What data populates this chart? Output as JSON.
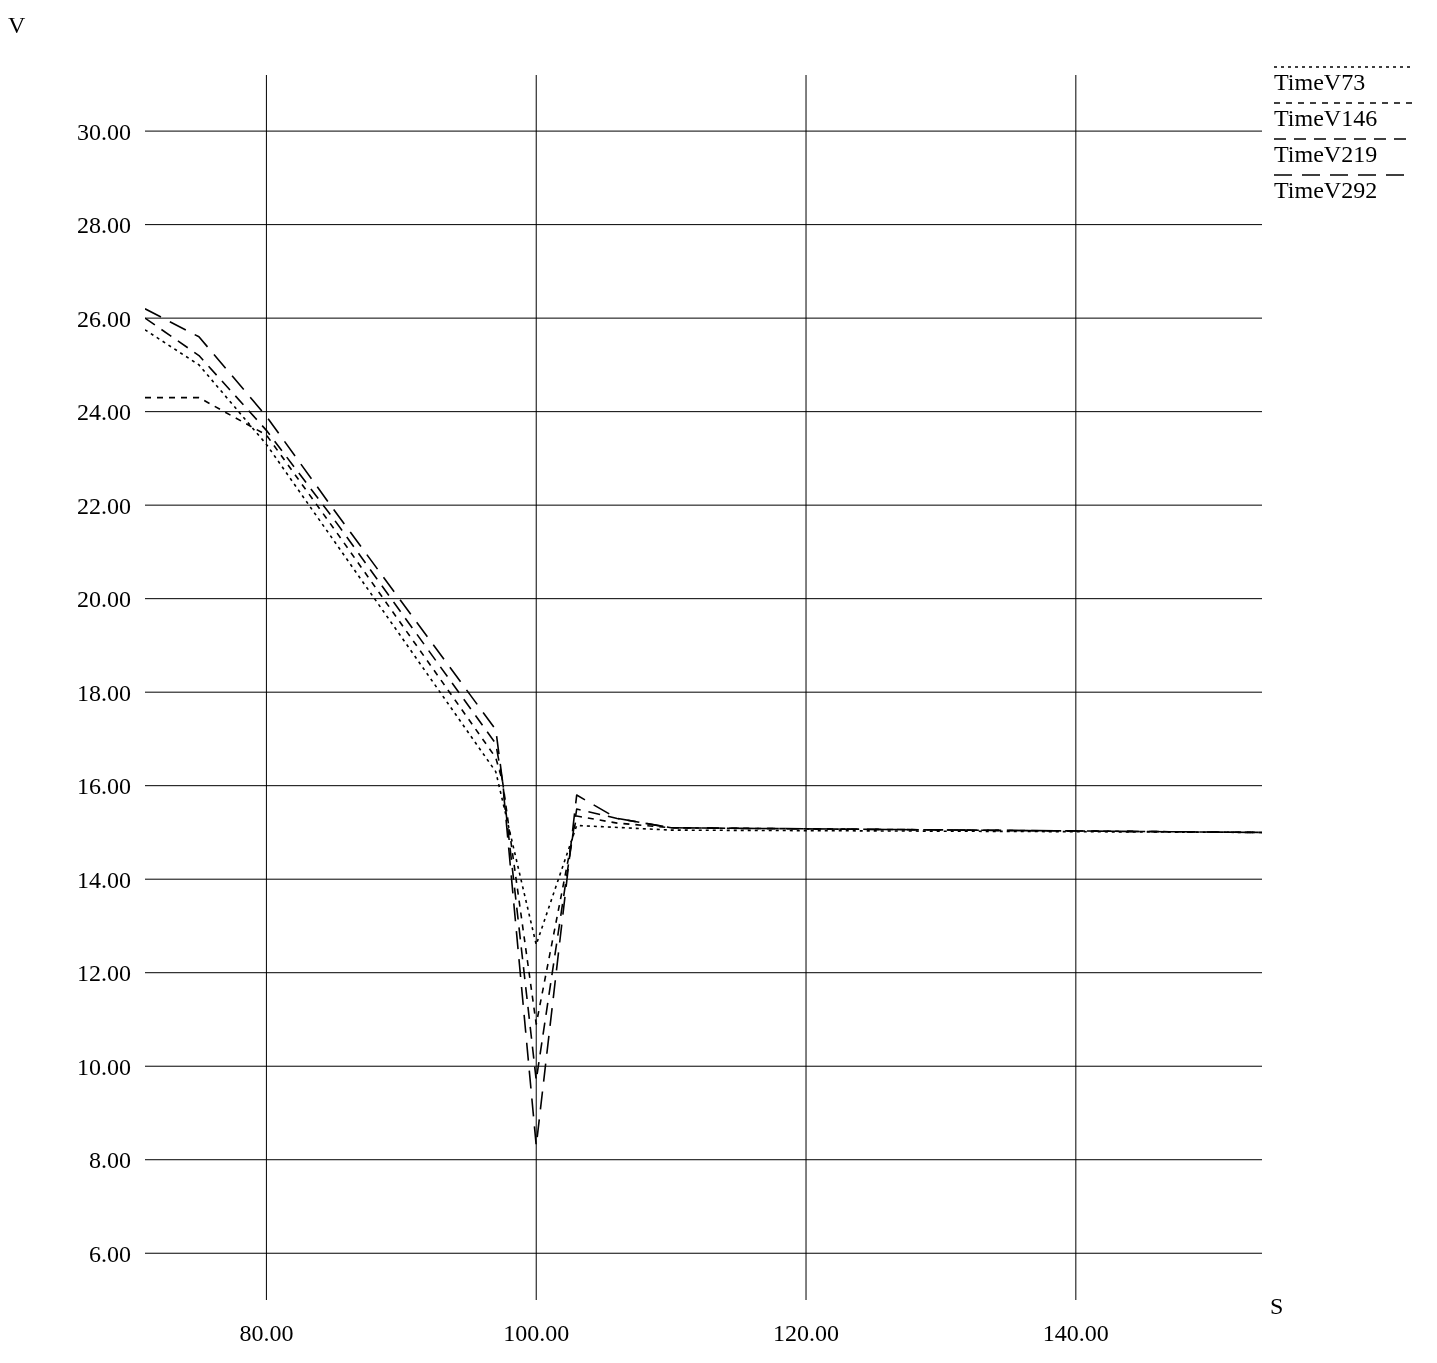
{
  "chart_data": {
    "type": "line",
    "xlabel": "S",
    "ylabel": "V",
    "xlim": [
      71,
      153.8
    ],
    "ylim": [
      5,
      31.2
    ],
    "xticks": [
      {
        "value": 80,
        "label": "80.00"
      },
      {
        "value": 100,
        "label": "100.00"
      },
      {
        "value": 120,
        "label": "120.00"
      },
      {
        "value": 140,
        "label": "140.00"
      }
    ],
    "yticks": [
      {
        "value": 6,
        "label": "6.00"
      },
      {
        "value": 8,
        "label": "8.00"
      },
      {
        "value": 10,
        "label": "10.00"
      },
      {
        "value": 12,
        "label": "12.00"
      },
      {
        "value": 14,
        "label": "14.00"
      },
      {
        "value": 16,
        "label": "16.00"
      },
      {
        "value": 18,
        "label": "18.00"
      },
      {
        "value": 20,
        "label": "20.00"
      },
      {
        "value": 22,
        "label": "22.00"
      },
      {
        "value": 24,
        "label": "24.00"
      },
      {
        "value": 26,
        "label": "26.00"
      },
      {
        "value": 28,
        "label": "28.00"
      },
      {
        "value": 30,
        "label": "30.00"
      }
    ],
    "grid": true,
    "legend": "top right",
    "marker": "none",
    "series": [
      {
        "name": "TimeV73",
        "color": "#000000",
        "line_style": "dotted",
        "x": [
          71,
          75,
          80,
          97,
          100,
          103,
          110,
          153.8
        ],
        "values": [
          25.75,
          25,
          23.3,
          16.3,
          12.6,
          15.15,
          15.05,
          15
        ]
      },
      {
        "name": "TimeV146",
        "color": "#000000",
        "line_style": "dashed",
        "x": [
          71,
          75,
          80,
          85,
          97,
          97.5,
          100,
          103,
          106,
          110,
          153.8
        ],
        "values": [
          24.3,
          24.3,
          23.5,
          21.5,
          16.6,
          16.1,
          10.9,
          15.35,
          15.2,
          15.1,
          15
        ]
      },
      {
        "name": "TimeV219",
        "color": "#000000",
        "line_style": "dashed",
        "x": [
          71,
          75,
          80,
          85,
          97,
          97.5,
          100,
          103,
          106,
          110,
          153.8
        ],
        "values": [
          26,
          25.2,
          23.6,
          21.7,
          16.9,
          16.1,
          9.7,
          15.5,
          15.3,
          15.1,
          15
        ]
      },
      {
        "name": "TimeV292",
        "color": "#000000",
        "line_style": "dashed",
        "x": [
          71,
          75,
          80,
          85,
          97,
          97.5,
          100,
          103,
          106,
          110,
          153.8
        ],
        "values": [
          26.2,
          25.6,
          23.9,
          21.9,
          17.2,
          16.1,
          8.3,
          15.8,
          15.3,
          15.1,
          15
        ]
      }
    ]
  }
}
